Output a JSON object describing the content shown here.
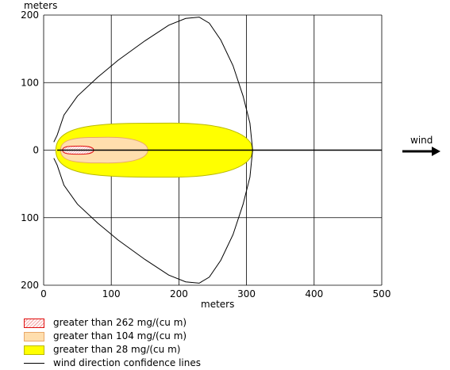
{
  "chart_data": {
    "type": "line",
    "title": "",
    "xlabel": "meters",
    "ylabel": "meters",
    "xlim": [
      0,
      500
    ],
    "ylim": [
      -200,
      200
    ],
    "x_ticks": [
      0,
      100,
      200,
      300,
      400,
      500
    ],
    "y_ticks": [
      {
        "value": 200,
        "label": "200"
      },
      {
        "value": 100,
        "label": "100"
      },
      {
        "value": 0,
        "label": "0"
      },
      {
        "value": -100,
        "label": "100"
      },
      {
        "value": -200,
        "label": "200"
      }
    ],
    "grid": true,
    "centerline": {
      "y": 0,
      "x_range": [
        20,
        500
      ]
    },
    "series": [
      {
        "name": "greater than 28 mg/(cu m)",
        "kind": "ellipse-zone",
        "fill": "#ffff00",
        "stroke": "#b8b800",
        "x_start": 18,
        "x_center": 190,
        "x_end": 309,
        "half_width": 40
      },
      {
        "name": "greater than 104 mg/(cu m)",
        "kind": "ellipse-zone",
        "fill": "#ffdead",
        "stroke": "#e8a86a",
        "x_start": 25,
        "x_center": 95,
        "x_end": 154,
        "half_width": 19
      },
      {
        "name": "greater than 262 mg/(cu m)",
        "kind": "ellipse-zone",
        "fill": "#fff0f0",
        "stroke": "#e01010",
        "x_start": 28,
        "x_center": 55,
        "x_end": 74,
        "half_width": 6
      },
      {
        "name": "wind direction confidence lines",
        "kind": "confidence-line",
        "stroke": "#000000",
        "points": [
          [
            15,
            12
          ],
          [
            20,
            22
          ],
          [
            30,
            52
          ],
          [
            50,
            80
          ],
          [
            80,
            108
          ],
          [
            110,
            133
          ],
          [
            150,
            162
          ],
          [
            185,
            185
          ],
          [
            210,
            195
          ],
          [
            230,
            197
          ],
          [
            245,
            188
          ],
          [
            262,
            163
          ],
          [
            280,
            125
          ],
          [
            295,
            80
          ],
          [
            305,
            40
          ],
          [
            309,
            0
          ],
          [
            305,
            -40
          ],
          [
            295,
            -80
          ],
          [
            280,
            -125
          ],
          [
            262,
            -163
          ],
          [
            245,
            -188
          ],
          [
            230,
            -197
          ],
          [
            210,
            -195
          ],
          [
            185,
            -185
          ],
          [
            150,
            -162
          ],
          [
            110,
            -133
          ],
          [
            80,
            -108
          ],
          [
            50,
            -80
          ],
          [
            30,
            -52
          ],
          [
            20,
            -22
          ],
          [
            15,
            -12
          ]
        ]
      }
    ],
    "legend_position": "bottom-left"
  },
  "legend": [
    {
      "label": "greater than 262 mg/(cu m)",
      "fill": "#fff0f0",
      "stroke": "#e01010",
      "style": "hatch"
    },
    {
      "label": "greater than 104 mg/(cu m)",
      "fill": "#ffdead",
      "stroke": "#e8a86a",
      "style": "solid"
    },
    {
      "label": "greater than 28 mg/(cu m)",
      "fill": "#ffff00",
      "stroke": "#b8b800",
      "style": "solid"
    },
    {
      "label": "wind direction confidence lines",
      "fill": "",
      "stroke": "#000000",
      "style": "line"
    }
  ],
  "wind": {
    "label": "wind",
    "icon": "arrow-right-icon"
  }
}
